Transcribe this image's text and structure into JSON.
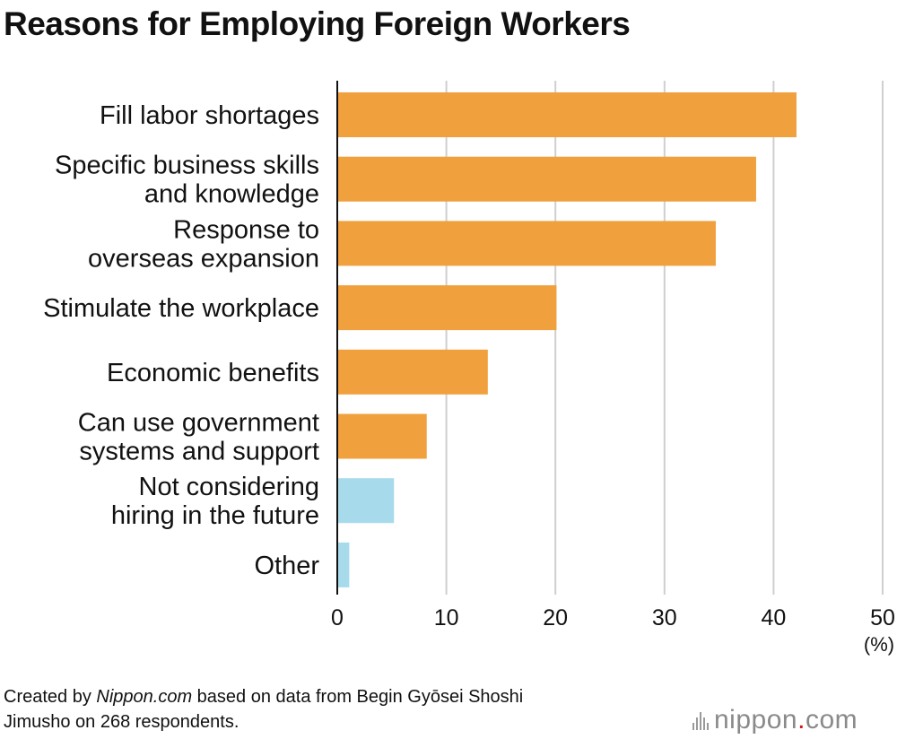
{
  "title": "Reasons for Employing Foreign Workers",
  "colors": {
    "primary_bar": "#f0a03c",
    "secondary_bar": "#a7dbeb",
    "grid": "#cfcfcf",
    "axis": "#111111",
    "brand_dot": "#d0141f"
  },
  "chart_data": {
    "type": "bar",
    "orientation": "horizontal",
    "categories": [
      [
        "Fill labor shortages"
      ],
      [
        "Specific business skills",
        "and knowledge"
      ],
      [
        "Response to",
        "overseas expansion"
      ],
      [
        "Stimulate the workplace"
      ],
      [
        "Economic benefits"
      ],
      [
        "Can use government",
        "systems and support"
      ],
      [
        "Not considering",
        "hiring in the future"
      ],
      [
        "Other"
      ]
    ],
    "values": [
      42.1,
      38.4,
      34.7,
      20.1,
      13.8,
      8.2,
      5.2,
      1.1
    ],
    "bar_color_groups": [
      "primary",
      "primary",
      "primary",
      "primary",
      "primary",
      "primary",
      "secondary",
      "secondary"
    ],
    "xlim": [
      0,
      50
    ],
    "xticks": [
      0,
      10,
      20,
      30,
      40,
      50
    ],
    "x_unit": "(%)",
    "grid": true
  },
  "footer": {
    "prefix": "Created by ",
    "source": "Nippon.com",
    "rest_line1": " based on data from Begin Gyōsei Shoshi",
    "line2": "Jimusho on 268 respondents."
  },
  "brand": {
    "name": "nippon",
    "dot": ".",
    "tld": "com"
  }
}
